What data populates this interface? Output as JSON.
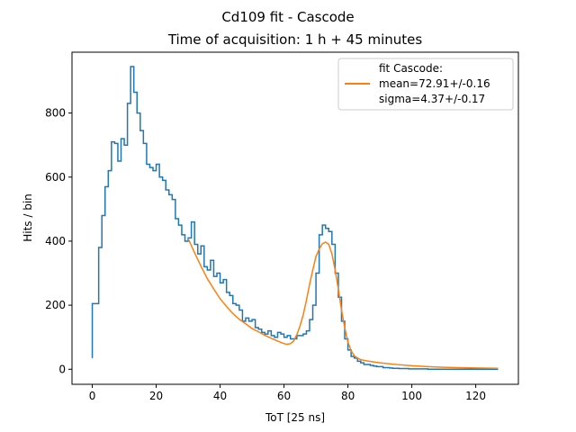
{
  "chart_data": {
    "type": "histogram",
    "title": "Cd109 fit - Cascode",
    "subtitle": "Time of acquisition: 1 h + 45 minutes",
    "xlabel": "ToT [25 ns]",
    "ylabel": "Hits / bin",
    "xlim": [
      -6.35,
      133.35
    ],
    "ylim": [
      -47,
      990
    ],
    "xticks": [
      0,
      20,
      40,
      60,
      80,
      100,
      120
    ],
    "yticks": [
      0,
      200,
      400,
      600,
      800
    ],
    "grid": false,
    "legend": {
      "placement": "top-right",
      "entries": [
        {
          "series": "fit",
          "lines": [
            "fit Cascode:",
            "mean=72.91+/-0.16",
            "sigma=4.37+/-0.17"
          ]
        }
      ]
    },
    "series": [
      {
        "kind": "step",
        "color": "#1f77b4",
        "bin_width": 1,
        "x_start": 0,
        "values": [
          205,
          205,
          380,
          480,
          570,
          620,
          710,
          705,
          650,
          720,
          700,
          830,
          945,
          865,
          800,
          745,
          705,
          640,
          630,
          620,
          640,
          600,
          590,
          560,
          545,
          530,
          470,
          450,
          420,
          400,
          410,
          460,
          390,
          360,
          385,
          320,
          310,
          340,
          290,
          300,
          270,
          280,
          240,
          230,
          205,
          200,
          185,
          150,
          160,
          150,
          155,
          130,
          125,
          115,
          110,
          120,
          105,
          100,
          115,
          110,
          100,
          105,
          95,
          95,
          105,
          105,
          110,
          120,
          155,
          200,
          300,
          420,
          450,
          440,
          430,
          390,
          300,
          225,
          150,
          95,
          60,
          40,
          35,
          25,
          20,
          15,
          15,
          12,
          10,
          8,
          8,
          5,
          5,
          4,
          3,
          3,
          2,
          2,
          2,
          1,
          1,
          1,
          1,
          1,
          1,
          0,
          0,
          0,
          0,
          0,
          0,
          0,
          0,
          0,
          0,
          0,
          0,
          0,
          0,
          0,
          0,
          0,
          0,
          0,
          0,
          0,
          0
        ]
      },
      {
        "name": "fit",
        "kind": "line",
        "color": "#ff7f0e",
        "x": [
          30,
          32,
          34,
          36,
          38,
          40,
          42,
          44,
          46,
          48,
          50,
          52,
          54,
          56,
          58,
          60,
          61,
          62,
          63,
          64,
          65,
          66,
          67,
          68,
          69,
          70,
          71,
          72,
          73,
          74,
          75,
          76,
          77,
          78,
          79,
          80,
          81,
          82,
          83,
          84,
          85,
          86,
          88,
          90,
          95,
          100,
          105,
          110,
          115,
          120,
          127
        ],
        "y": [
          408,
          364,
          322,
          283,
          251,
          220,
          196,
          174,
          156,
          142,
          127,
          117,
          106,
          97,
          88,
          80,
          78,
          80,
          88,
          108,
          135,
          170,
          215,
          265,
          310,
          352,
          375,
          392,
          397,
          390,
          360,
          310,
          250,
          185,
          130,
          85,
          58,
          42,
          35,
          30,
          28,
          26,
          23,
          20,
          15,
          11,
          8,
          6,
          5,
          4,
          3
        ]
      }
    ]
  }
}
